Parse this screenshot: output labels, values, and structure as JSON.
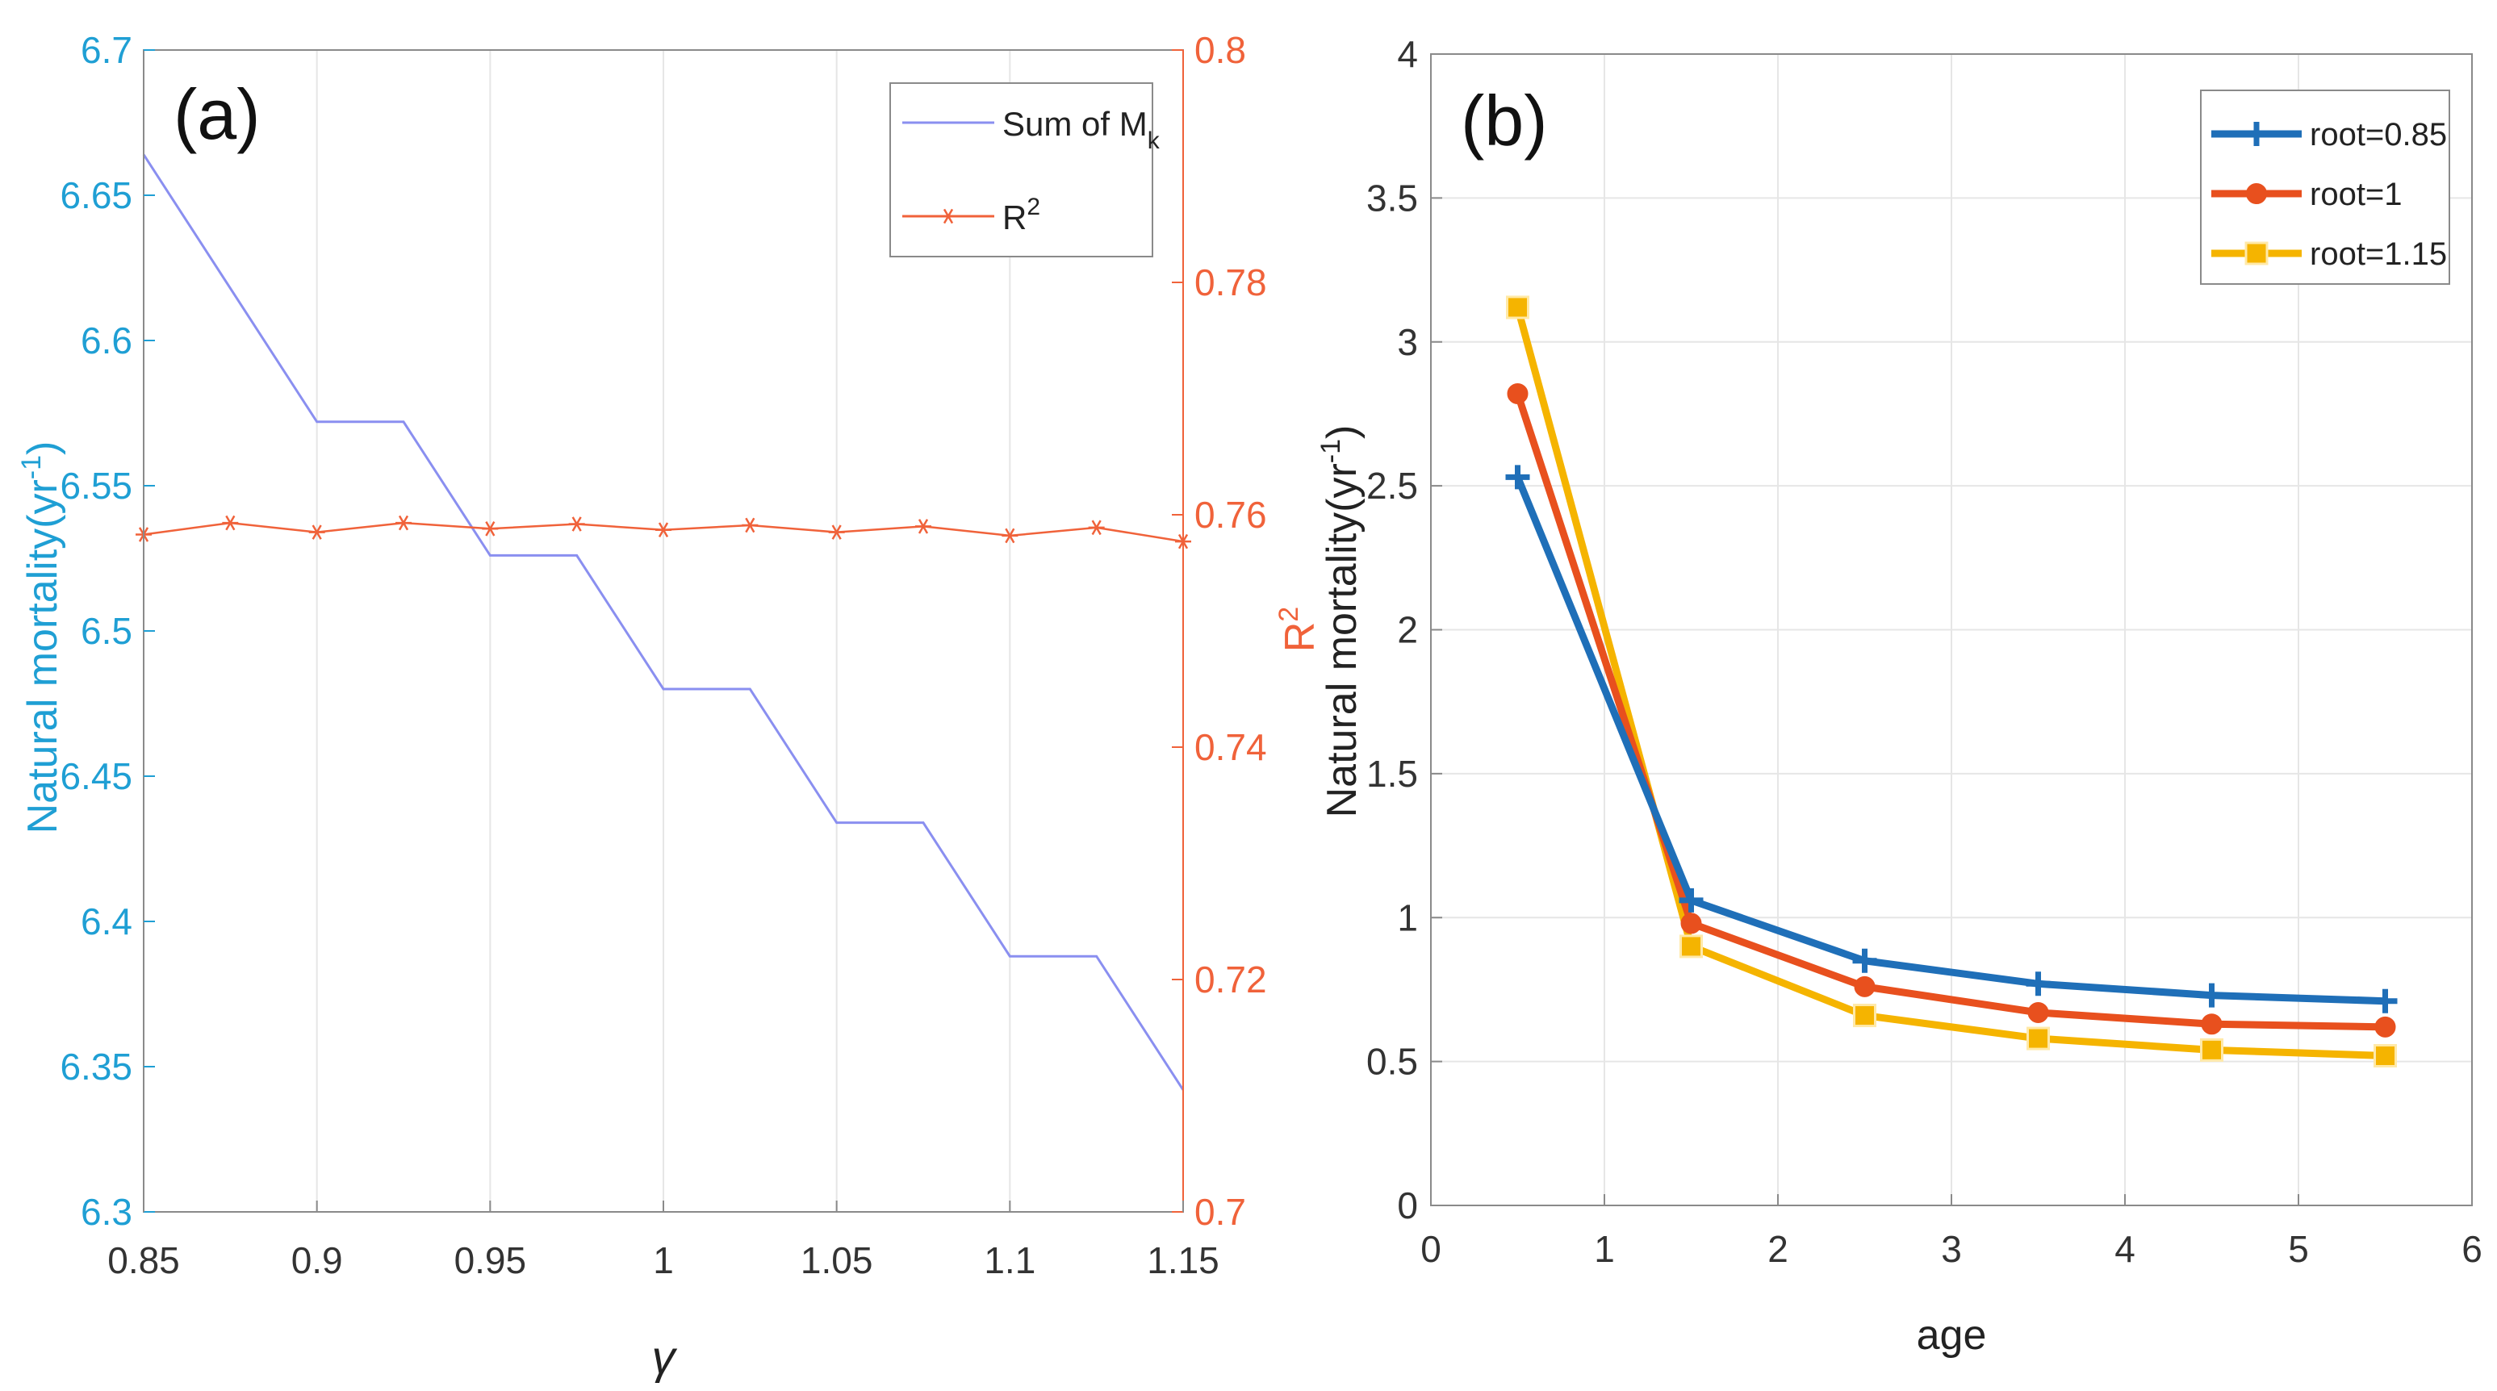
{
  "colors": {
    "left_axis": "#1f9fd4",
    "right_axis": "#f0623a",
    "sum_line": "#8a8ff0",
    "r2_line": "#f0623a",
    "grid": "#e6e6e6",
    "root085": "#1f6fb8",
    "root1": "#e8501e",
    "root115": "#f5b400"
  },
  "chart_data": [
    {
      "type": "line",
      "panel_label": "(a)",
      "xlabel": "γ",
      "ylabel": "Natural mortality(yr",
      "ylabel_sup": "-1",
      "ylabel_close": ")",
      "y2label": "R",
      "y2label_sup": "2",
      "xlim": [
        0.85,
        1.15
      ],
      "ylim": [
        6.3,
        6.7
      ],
      "y2lim": [
        0.7,
        0.8
      ],
      "xticks": [
        0.85,
        0.9,
        0.95,
        1,
        1.05,
        1.1,
        1.15
      ],
      "xtick_labels": [
        "0.85",
        "0.9",
        "0.95",
        "1",
        "1.05",
        "1.1",
        "1.15"
      ],
      "yticks": [
        6.3,
        6.35,
        6.4,
        6.45,
        6.5,
        6.55,
        6.6,
        6.65,
        6.7
      ],
      "ytick_labels": [
        "6.3",
        "6.35",
        "6.4",
        "6.45",
        "6.5",
        "6.55",
        "6.6",
        "6.65",
        "6.7"
      ],
      "y2ticks": [
        0.7,
        0.72,
        0.74,
        0.76,
        0.78,
        0.8
      ],
      "y2tick_labels": [
        "0.7",
        "0.72",
        "0.74",
        "0.76",
        "0.78",
        "0.8"
      ],
      "legend_position": "top-right",
      "series": [
        {
          "name": "Sum of M",
          "name_sub": "k",
          "axis": "left",
          "marker": "none",
          "x": [
            0.85,
            0.9,
            0.925,
            0.95,
            0.975,
            1.0,
            1.025,
            1.05,
            1.075,
            1.1,
            1.125,
            1.15
          ],
          "values": [
            6.664,
            6.572,
            6.572,
            6.526,
            6.526,
            6.48,
            6.48,
            6.434,
            6.434,
            6.388,
            6.388,
            6.342
          ]
        },
        {
          "name": "R",
          "name_sup": "2",
          "axis": "right",
          "marker": "asterisk",
          "x": [
            0.85,
            0.875,
            0.9,
            0.925,
            0.95,
            0.975,
            1.0,
            1.025,
            1.05,
            1.075,
            1.1,
            1.125,
            1.15
          ],
          "values": [
            0.7583,
            0.7593,
            0.7585,
            0.7593,
            0.7588,
            0.7592,
            0.7587,
            0.7591,
            0.7585,
            0.759,
            0.7582,
            0.7589,
            0.7577
          ]
        }
      ]
    },
    {
      "type": "line",
      "panel_label": "(b)",
      "xlabel": "age",
      "ylabel": "Natural mortality(yr",
      "ylabel_sup": "-1",
      "ylabel_close": ")",
      "xlim": [
        0,
        6
      ],
      "ylim": [
        0,
        4
      ],
      "grid": true,
      "xticks": [
        0,
        1,
        2,
        3,
        4,
        5,
        6
      ],
      "xtick_labels": [
        "0",
        "1",
        "2",
        "3",
        "4",
        "5",
        "6"
      ],
      "yticks": [
        0,
        0.5,
        1,
        1.5,
        2,
        2.5,
        3,
        3.5,
        4
      ],
      "ytick_labels": [
        "0",
        "0.5",
        "1",
        "1.5",
        "2",
        "2.5",
        "3",
        "3.5",
        "4"
      ],
      "legend_position": "top-right",
      "x": [
        0.5,
        1.5,
        2.5,
        3.5,
        4.5,
        5.5
      ],
      "series": [
        {
          "name": "root=0.85",
          "marker": "plus",
          "values": [
            2.53,
            1.06,
            0.85,
            0.77,
            0.73,
            0.71
          ]
        },
        {
          "name": "root=1",
          "marker": "circle",
          "values": [
            2.82,
            0.98,
            0.76,
            0.67,
            0.63,
            0.62
          ]
        },
        {
          "name": "root=1.15",
          "marker": "square",
          "values": [
            3.12,
            0.9,
            0.66,
            0.58,
            0.54,
            0.52
          ]
        }
      ]
    }
  ]
}
